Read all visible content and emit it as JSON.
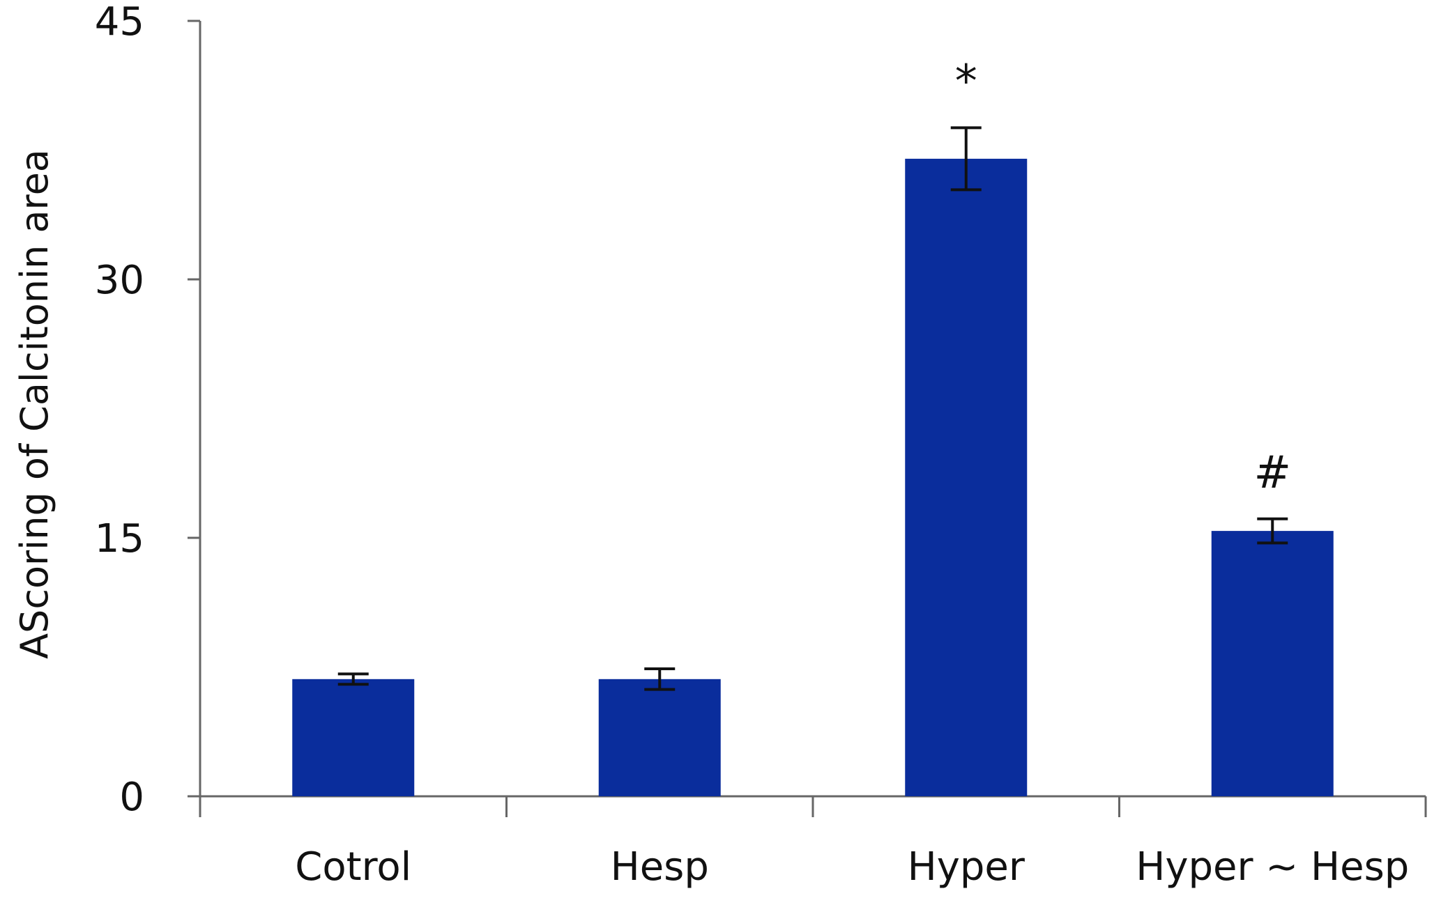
{
  "chart_data": {
    "type": "bar",
    "title": "",
    "xlabel": "",
    "ylabel": "AScoring of Calcitonin area",
    "categories": [
      "Cotrol",
      "Hesp",
      "Hyper",
      "Hyper ~ Hesp"
    ],
    "values": [
      6.8,
      6.8,
      37.0,
      15.4
    ],
    "errors": [
      0.3,
      0.6,
      1.8,
      0.7
    ],
    "markers": [
      "",
      "",
      "*",
      "#"
    ],
    "ylim": [
      0,
      45
    ],
    "yticks": [
      "0",
      "15",
      "30",
      "45"
    ],
    "grid": false,
    "legend": "none",
    "bar_color": "#0a2d9c",
    "error_color": "#111111",
    "axis_color": "#666666"
  }
}
